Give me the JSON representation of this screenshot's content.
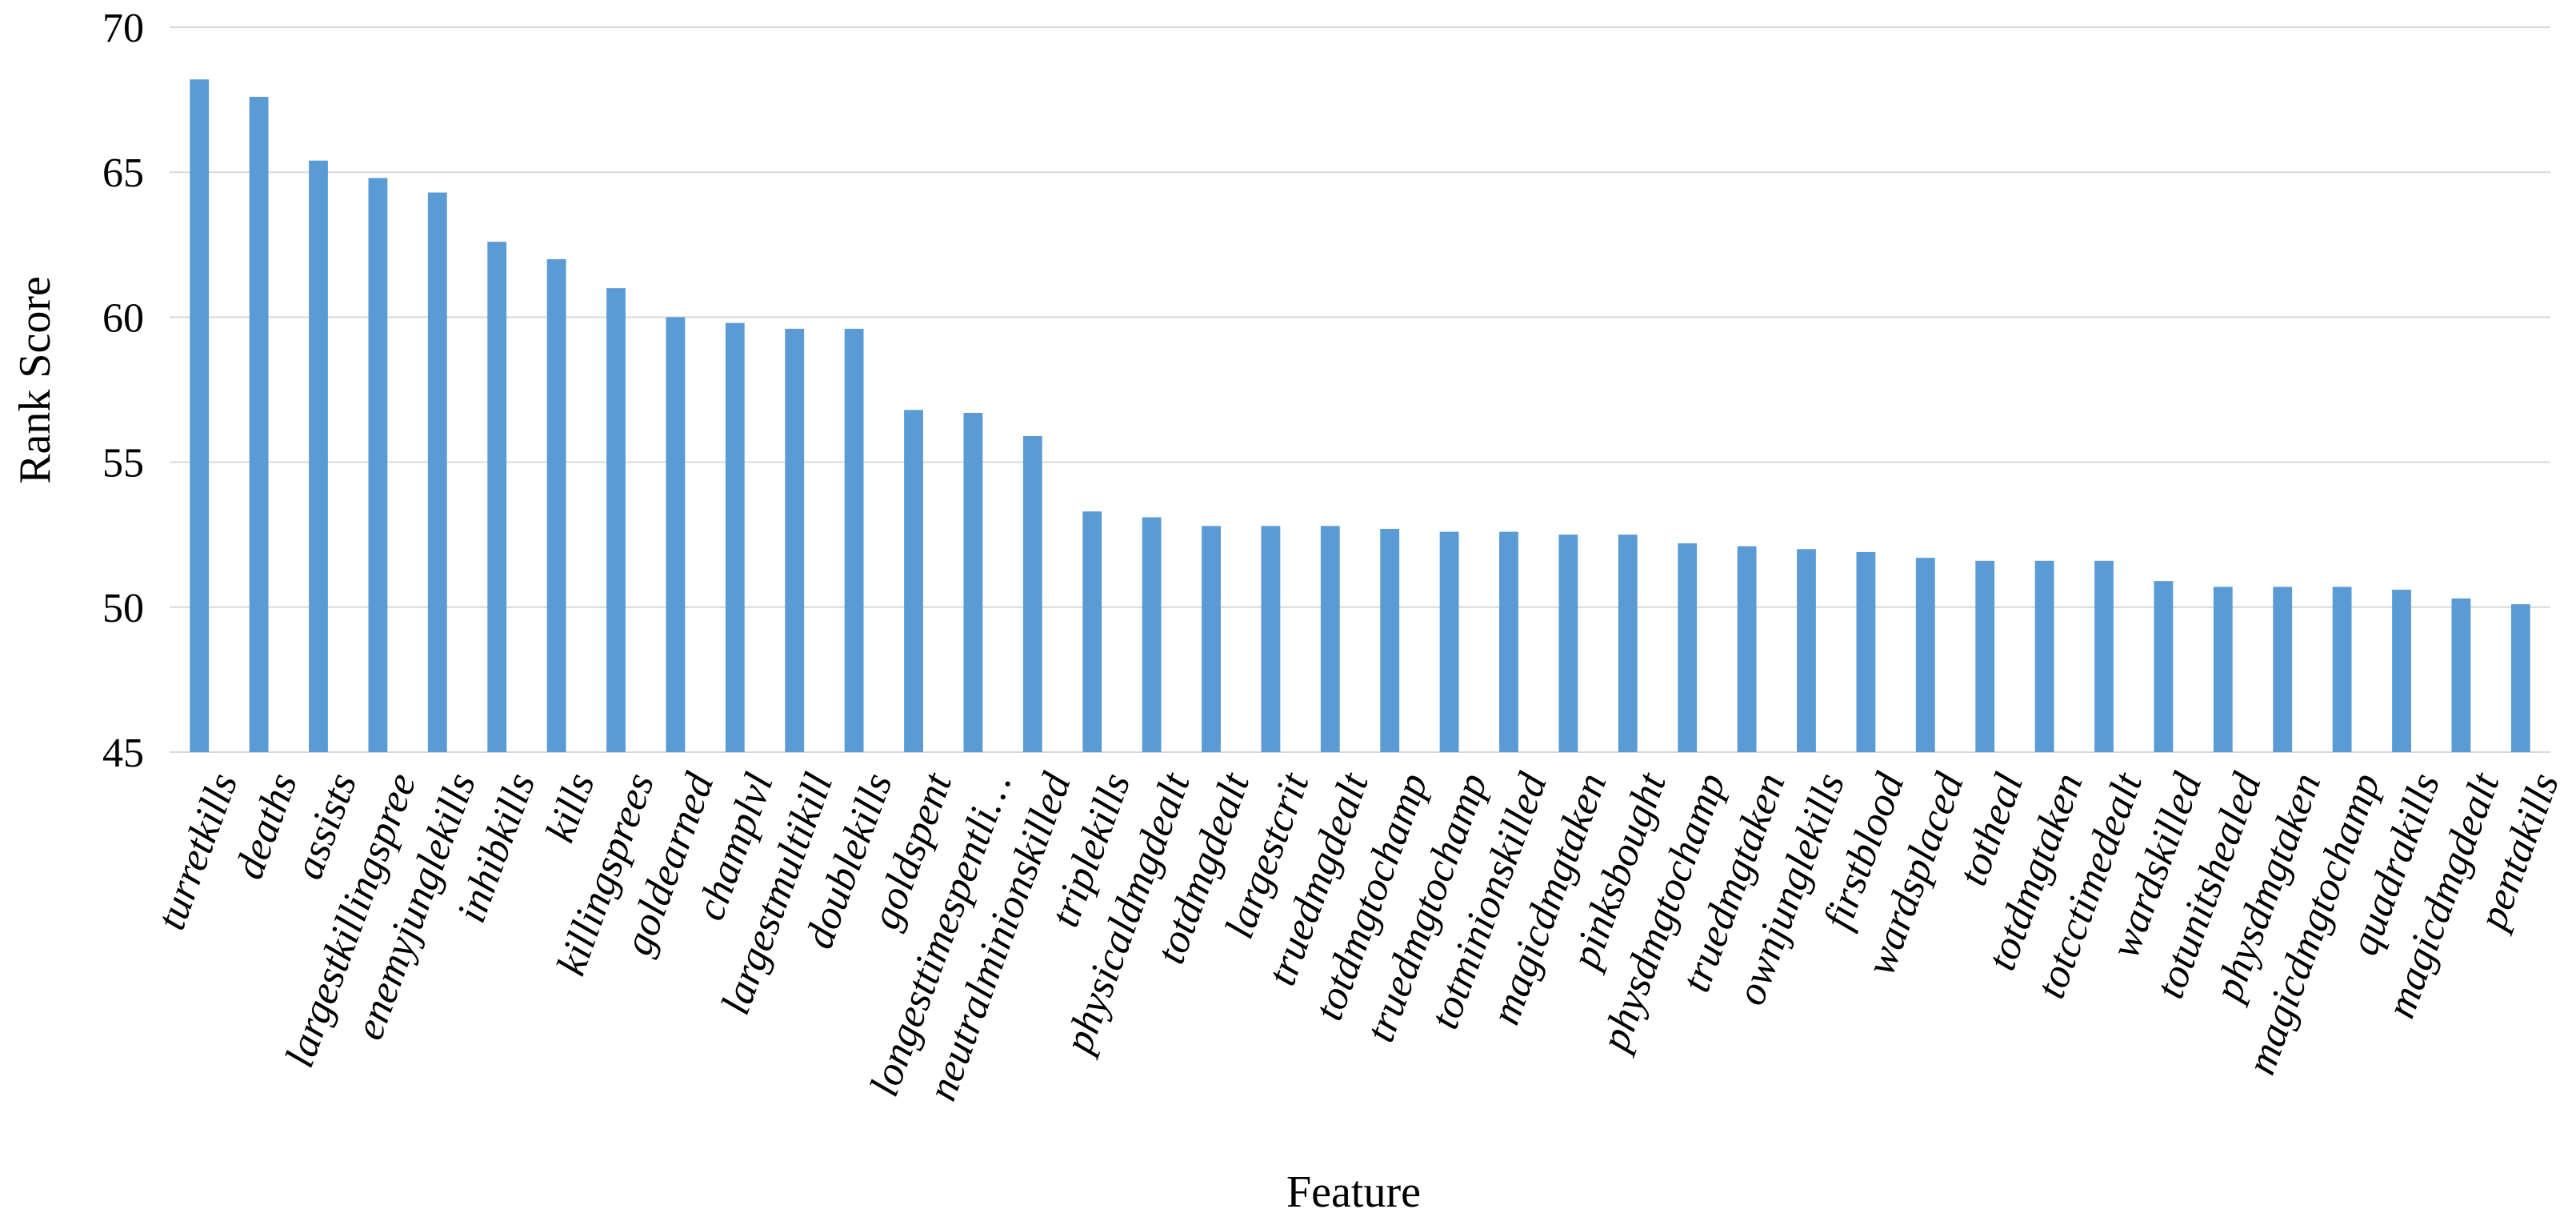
{
  "chart_data": {
    "type": "bar",
    "title": "",
    "xlabel": "Feature",
    "ylabel": "Rank Score",
    "ylim": [
      45,
      70
    ],
    "yticks": [
      45,
      50,
      55,
      60,
      65,
      70
    ],
    "grid": true,
    "color": "#5b9bd5",
    "categories": [
      "turretkills",
      "deaths",
      "assists",
      "largestkillingspree",
      "enemyjunglekills",
      "inhibkills",
      "kills",
      "killingsprees",
      "goldearned",
      "champlvl",
      "largestmultikill",
      "doublekills",
      "goldspent",
      "longesttimespentli…",
      "neutralminionskilled",
      "triplekills",
      "physicaldmgdealt",
      "totdmgdealt",
      "largestcrit",
      "truedmgdealt",
      "totdmgtochamp",
      "truedmgtochamp",
      "totminionskilled",
      "magicdmgtaken",
      "pinksbought",
      "physdmgtochamp",
      "truedmgtaken",
      "ownjunglekills",
      "firstblood",
      "wardsplaced",
      "totheal",
      "totdmgtaken",
      "totcctimedealt",
      "wardskilled",
      "totunitshealed",
      "physdmgtaken",
      "magicdmgtochamp",
      "quadrakills",
      "magicdmgdealt",
      "pentakills"
    ],
    "values": [
      68.2,
      67.6,
      65.4,
      64.8,
      64.3,
      62.6,
      62.0,
      61.0,
      60.0,
      59.8,
      59.6,
      59.6,
      56.8,
      56.7,
      55.9,
      53.3,
      53.1,
      52.8,
      52.8,
      52.8,
      52.7,
      52.6,
      52.6,
      52.5,
      52.5,
      52.2,
      52.1,
      52.0,
      51.9,
      51.7,
      51.6,
      51.6,
      51.6,
      50.9,
      50.7,
      50.7,
      50.7,
      50.6,
      50.3,
      50.1
    ]
  }
}
